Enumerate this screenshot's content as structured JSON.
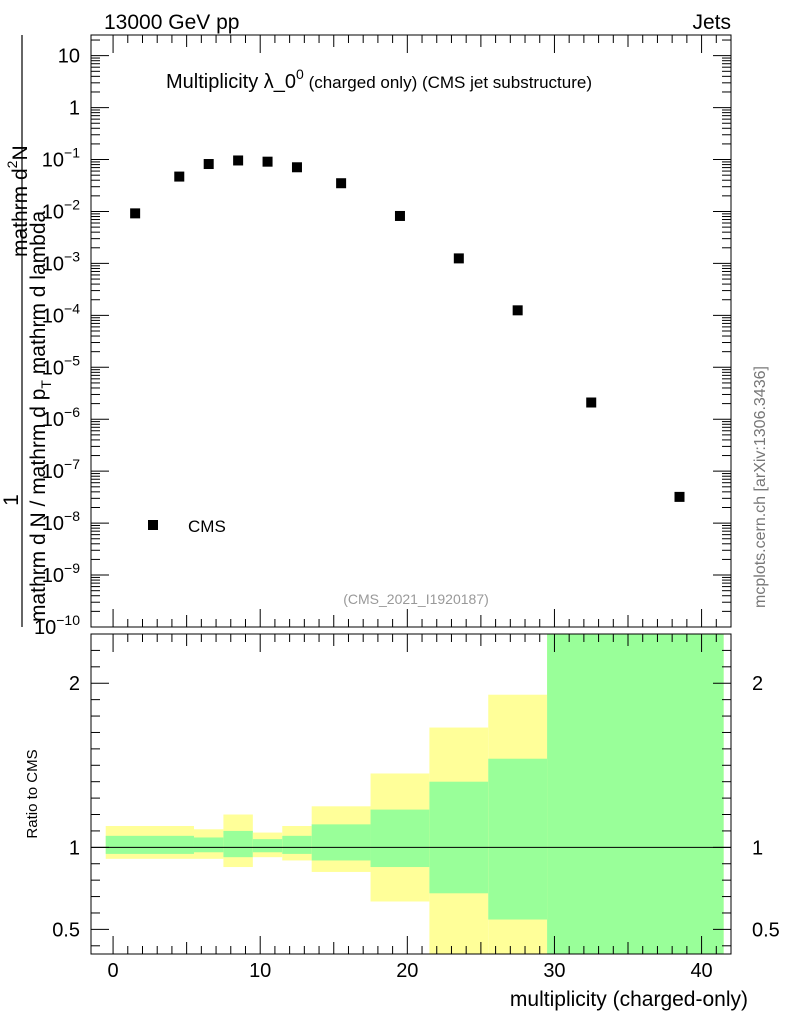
{
  "header": {
    "left": "13000 GeV pp",
    "right": "Jets"
  },
  "side_label": "mcplots.cern.ch [arXiv:1306.3436]",
  "analysis_tag": "(CMS_2021_I1920187)",
  "chart_data": [
    {
      "type": "scatter",
      "title_main": "Multiplicity λ_0",
      "title_sup": "0",
      "title_small": " (charged only) (CMS jet substructure)",
      "ylabel_top": "mathrm d",
      "ylabel_top_sup": "2",
      "ylabel_top_end": "N",
      "ylabel_one": "1",
      "ylabel_bottom": "mathrm d N / mathrm d p",
      "ylabel_bottom_sub": "T",
      "ylabel_bottom_end": " mathrm d lambda",
      "yscale": "log",
      "ylim": [
        1e-10,
        25
      ],
      "xlim": [
        -1.5,
        42
      ],
      "yticks": [
        {
          "value": 10,
          "label": "10"
        },
        {
          "value": 1,
          "label": "1"
        },
        {
          "value": 0.1,
          "base": "10",
          "exp": "−1"
        },
        {
          "value": 0.01,
          "base": "10",
          "exp": "−2"
        },
        {
          "value": 0.001,
          "base": "10",
          "exp": "−3"
        },
        {
          "value": 0.0001,
          "base": "10",
          "exp": "−4"
        },
        {
          "value": 1e-05,
          "base": "10",
          "exp": "−5"
        },
        {
          "value": 1e-06,
          "base": "10",
          "exp": "−6"
        },
        {
          "value": 1e-07,
          "base": "10",
          "exp": "−7"
        },
        {
          "value": 1e-08,
          "base": "10",
          "exp": "−8"
        },
        {
          "value": 1e-09,
          "base": "10",
          "exp": "−9"
        },
        {
          "value": 1e-10,
          "base": "10",
          "exp": "−10"
        }
      ],
      "legend": {
        "label": "CMS",
        "position": "lower-left"
      },
      "series": [
        {
          "name": "CMS",
          "color": "#000000",
          "points": [
            {
              "x": 1.5,
              "y": 0.0092
            },
            {
              "x": 4.5,
              "y": 0.047
            },
            {
              "x": 6.5,
              "y": 0.082
            },
            {
              "x": 8.5,
              "y": 0.096
            },
            {
              "x": 10.5,
              "y": 0.091
            },
            {
              "x": 12.5,
              "y": 0.071
            },
            {
              "x": 15.5,
              "y": 0.035
            },
            {
              "x": 19.5,
              "y": 0.0082
            },
            {
              "x": 23.5,
              "y": 0.00125
            },
            {
              "x": 27.5,
              "y": 0.000125
            },
            {
              "x": 32.5,
              "y": 2.1e-06
            },
            {
              "x": 38.5,
              "y": 3.2e-08
            }
          ]
        }
      ]
    },
    {
      "type": "area",
      "ylabel": "Ratio to CMS",
      "xlabel": "multiplicity (charged-only)",
      "ylim": [
        0.35,
        2.3
      ],
      "xlim": [
        -1.5,
        42
      ],
      "xticks": [
        0,
        10,
        20,
        30,
        40
      ],
      "yticks": [
        {
          "value": 0.5,
          "label": "0.5"
        },
        {
          "value": 1,
          "label": "1"
        },
        {
          "value": 2,
          "label": "2"
        }
      ],
      "reference_line": 1,
      "band_colors": {
        "outer": "#ffff99",
        "inner": "#99ff99"
      },
      "bands": [
        {
          "x0": -0.5,
          "x1": 5.5,
          "outer": [
            0.93,
            1.13
          ],
          "inner": [
            0.96,
            1.07
          ]
        },
        {
          "x0": 5.5,
          "x1": 7.5,
          "outer": [
            0.93,
            1.11
          ],
          "inner": [
            0.97,
            1.06
          ]
        },
        {
          "x0": 7.5,
          "x1": 9.5,
          "outer": [
            0.88,
            1.2
          ],
          "inner": [
            0.94,
            1.1
          ]
        },
        {
          "x0": 9.5,
          "x1": 11.5,
          "outer": [
            0.94,
            1.09
          ],
          "inner": [
            0.97,
            1.05
          ]
        },
        {
          "x0": 11.5,
          "x1": 13.5,
          "outer": [
            0.92,
            1.13
          ],
          "inner": [
            0.96,
            1.07
          ]
        },
        {
          "x0": 13.5,
          "x1": 17.5,
          "outer": [
            0.85,
            1.25
          ],
          "inner": [
            0.92,
            1.14
          ]
        },
        {
          "x0": 17.5,
          "x1": 21.5,
          "outer": [
            0.67,
            1.45
          ],
          "inner": [
            0.88,
            1.23
          ]
        },
        {
          "x0": 21.5,
          "x1": 25.5,
          "outer": [
            0.3,
            1.73
          ],
          "inner": [
            0.72,
            1.4
          ]
        },
        {
          "x0": 25.5,
          "x1": 29.5,
          "outer": [
            0.3,
            1.93
          ],
          "inner": [
            0.56,
            1.54
          ]
        },
        {
          "x0": 29.5,
          "x1": 41.5,
          "outer": [
            0.3,
            2.3
          ],
          "inner": [
            0.3,
            2.3
          ]
        }
      ]
    }
  ]
}
